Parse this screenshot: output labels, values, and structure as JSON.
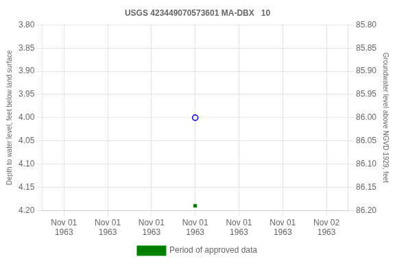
{
  "chart_data": {
    "type": "scatter",
    "title": "USGS 423449070573601 MA-DBX   10",
    "ylabel": "Depth to water level, feet below land surface",
    "y2label": "Groundwater level above NGVD 1929, feet",
    "categories": [
      "Nov 01\n1963",
      "Nov 01\n1963",
      "Nov 01\n1963",
      "Nov 01\n1963",
      "Nov 01\n1963",
      "Nov 01\n1963",
      "Nov 02\n1963"
    ],
    "series": [
      {
        "color": "#0000cc",
        "marker": "open_circle",
        "values": [
          null,
          null,
          null,
          4.0,
          null,
          null,
          null
        ]
      },
      {
        "name": "Period of approved data",
        "color": "#008000",
        "marker": "square",
        "values": [
          null,
          null,
          null,
          4.19,
          null,
          null,
          null
        ]
      }
    ],
    "ylim": [
      4.2,
      3.8
    ],
    "yticks": [
      {
        "value": 3.8,
        "label": "3.80"
      },
      {
        "value": 3.85,
        "label": "3.85"
      },
      {
        "value": 3.9,
        "label": "3.90"
      },
      {
        "value": 3.95,
        "label": "3.95"
      },
      {
        "value": 4.0,
        "label": "4.00"
      },
      {
        "value": 4.05,
        "label": "4.05"
      },
      {
        "value": 4.1,
        "label": "4.10"
      },
      {
        "value": 4.15,
        "label": "4.15"
      },
      {
        "value": 4.2,
        "label": "4.20"
      }
    ],
    "y2lim": [
      86.2,
      85.8
    ],
    "y2ticks": [
      {
        "value": 85.8,
        "label": "85.80"
      },
      {
        "value": 85.85,
        "label": "85.85"
      },
      {
        "value": 85.9,
        "label": "85.90"
      },
      {
        "value": 85.95,
        "label": "85.95"
      },
      {
        "value": 86.0,
        "label": "86.00"
      },
      {
        "value": 86.05,
        "label": "86.05"
      },
      {
        "value": 86.1,
        "label": "86.10"
      },
      {
        "value": 86.15,
        "label": "86.15"
      },
      {
        "value": 86.2,
        "label": "86.20"
      }
    ],
    "grid": true,
    "legend": "bottom"
  }
}
